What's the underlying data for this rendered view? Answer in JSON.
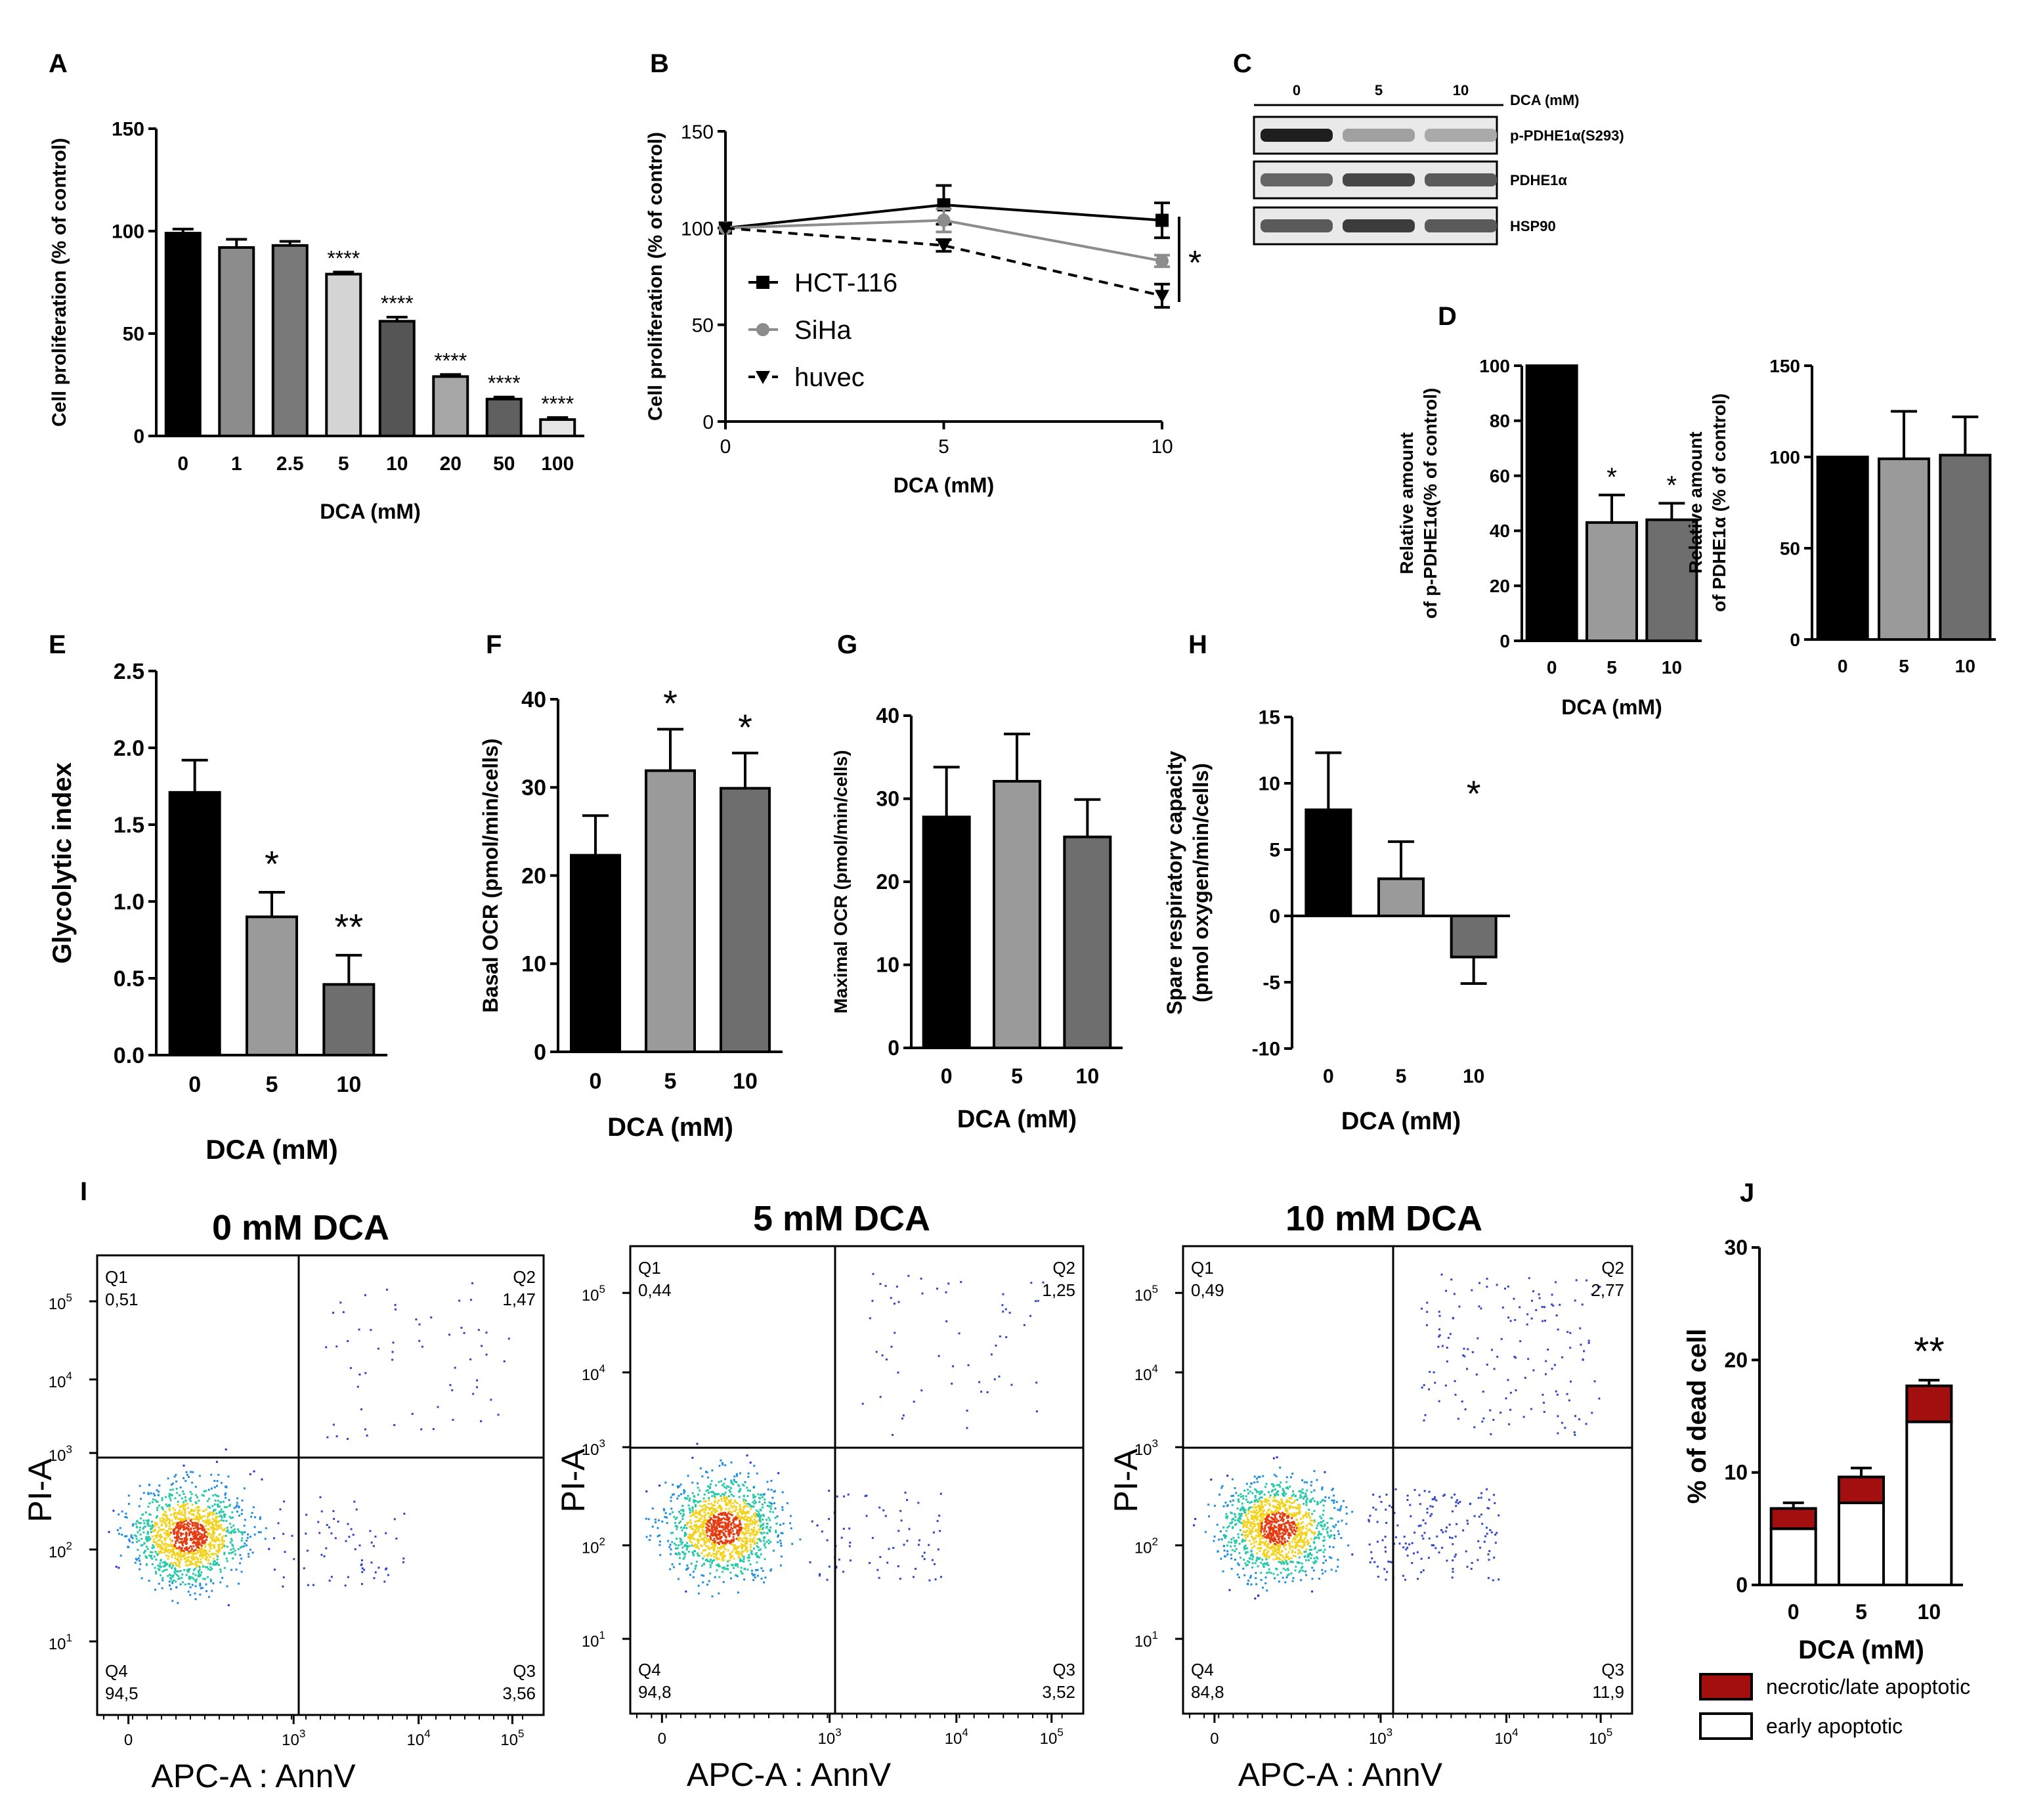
{
  "figure": {
    "x_common_label": "DCA (mM)"
  },
  "chart_data": [
    {
      "id": "A",
      "panel_label": "A",
      "type": "bar",
      "categories": [
        "0",
        "1",
        "2.5",
        "5",
        "10",
        "20",
        "50",
        "100"
      ],
      "values": [
        99,
        92,
        93,
        79,
        56,
        29,
        18,
        8
      ],
      "errors": [
        2,
        4,
        2,
        1,
        2,
        1,
        1,
        1
      ],
      "annotations": [
        "",
        "",
        "",
        "****",
        "****",
        "****",
        "****",
        "****"
      ],
      "colors": [
        "#000000",
        "#8c8c8c",
        "#797979",
        "#d4d4d4",
        "#555555",
        "#a6a6a6",
        "#606060",
        "#e6e6e6"
      ],
      "xlabel": "DCA (mM)",
      "ylabel": "Cell proliferation (% of control)",
      "ylim": [
        0,
        150
      ],
      "yticks": [
        "0",
        "50",
        "100",
        "150"
      ],
      "grid": false
    },
    {
      "id": "B",
      "panel_label": "B",
      "type": "line",
      "x": [
        0,
        5,
        10
      ],
      "xticks": [
        "0",
        "5",
        "10"
      ],
      "series": [
        {
          "name": "HCT-116",
          "values": [
            100,
            112,
            104
          ],
          "errors": [
            0,
            10,
            9
          ],
          "color": "#000000",
          "marker": "square",
          "dash": false
        },
        {
          "name": "SiHa",
          "values": [
            100,
            104,
            83
          ],
          "errors": [
            0,
            6,
            3
          ],
          "color": "#8c8c8c",
          "marker": "circle",
          "dash": false
        },
        {
          "name": "huvec",
          "values": [
            100,
            91,
            65
          ],
          "errors": [
            0,
            3,
            6
          ],
          "color": "#000000",
          "marker": "triangle-down",
          "dash": true
        }
      ],
      "significance": "*",
      "xlabel": "DCA (mM)",
      "ylabel": "Cell proliferation (% of control)",
      "ylim": [
        0,
        150
      ],
      "yticks": [
        "0",
        "50",
        "100",
        "150"
      ],
      "legend": "left"
    },
    {
      "id": "D1",
      "panel_label": "D",
      "type": "bar",
      "categories": [
        "0",
        "5",
        "10"
      ],
      "values": [
        100,
        43,
        44
      ],
      "errors": [
        0,
        10,
        6
      ],
      "annotations": [
        "",
        "*",
        "*"
      ],
      "colors": [
        "#000000",
        "#9a9a9a",
        "#6e6e6e"
      ],
      "xlabel": "DCA (mM)",
      "ylabel_lines": [
        "Relative amount",
        "of p-PDHE1α(% of control)"
      ],
      "ylim": [
        0,
        100
      ],
      "yticks": [
        "0",
        "20",
        "40",
        "60",
        "80",
        "100"
      ]
    },
    {
      "id": "D2",
      "panel_label": "",
      "type": "bar",
      "categories": [
        "0",
        "5",
        "10"
      ],
      "values": [
        100,
        99,
        101
      ],
      "errors": [
        0,
        26,
        21
      ],
      "annotations": [
        "",
        "",
        ""
      ],
      "colors": [
        "#000000",
        "#9a9a9a",
        "#6e6e6e"
      ],
      "xlabel": "",
      "ylabel_lines": [
        "Relative amount",
        "of PDHE1α (% of control)"
      ],
      "ylim": [
        0,
        150
      ],
      "yticks": [
        "0",
        "50",
        "100",
        "150"
      ]
    },
    {
      "id": "E",
      "panel_label": "E",
      "type": "bar",
      "categories": [
        "0",
        "5",
        "10"
      ],
      "values": [
        1.71,
        0.9,
        0.46
      ],
      "errors": [
        0.21,
        0.16,
        0.19
      ],
      "annotations": [
        "",
        "*",
        "**"
      ],
      "colors": [
        "#000000",
        "#9a9a9a",
        "#6e6e6e"
      ],
      "xlabel": "DCA (mM)",
      "ylabel": "Glycolytic index",
      "ylim": [
        0,
        2.5
      ],
      "yticks": [
        "0.0",
        "0.5",
        "1.0",
        "1.5",
        "2.0",
        "2.5"
      ]
    },
    {
      "id": "F",
      "panel_label": "F",
      "type": "bar",
      "categories": [
        "0",
        "5",
        "10"
      ],
      "values": [
        22.3,
        31.9,
        29.9
      ],
      "errors": [
        4.5,
        4.7,
        4
      ],
      "annotations": [
        "",
        "*",
        "*"
      ],
      "colors": [
        "#000000",
        "#9a9a9a",
        "#6e6e6e"
      ],
      "xlabel": "DCA (mM)",
      "ylabel": "Basal OCR (pmol/min/cells)",
      "ylim": [
        0,
        40
      ],
      "yticks": [
        "0",
        "10",
        "20",
        "30",
        "40"
      ]
    },
    {
      "id": "G",
      "panel_label": "G",
      "type": "bar",
      "categories": [
        "0",
        "5",
        "10"
      ],
      "values": [
        27.8,
        32.1,
        25.4
      ],
      "errors": [
        6,
        5.7,
        4.5
      ],
      "annotations": [
        "",
        "",
        ""
      ],
      "colors": [
        "#000000",
        "#9a9a9a",
        "#6e6e6e"
      ],
      "xlabel": "DCA (mM)",
      "ylabel": "Maximal OCR (pmol/min/cells)",
      "ylim": [
        0,
        40
      ],
      "yticks": [
        "0",
        "10",
        "20",
        "30",
        "40"
      ]
    },
    {
      "id": "H",
      "panel_label": "H",
      "type": "bar",
      "categories": [
        "0",
        "5",
        "10"
      ],
      "values": [
        8,
        2.8,
        -3.1
      ],
      "errors": [
        4.3,
        2.8,
        2
      ],
      "annotations": [
        "",
        "",
        "*"
      ],
      "colors": [
        "#000000",
        "#9a9a9a",
        "#6e6e6e"
      ],
      "xlabel": "DCA (mM)",
      "ylabel_lines": [
        "Spare respiratory capacity",
        "(pmol oxygen/min/cells)"
      ],
      "ylim": [
        -10,
        15
      ],
      "yticks": [
        "-10",
        "-5",
        "0",
        "5",
        "10",
        "15"
      ]
    },
    {
      "id": "J",
      "panel_label": "J",
      "type": "stacked-bar",
      "categories": [
        "0",
        "5",
        "10"
      ],
      "series": [
        {
          "name": "early apoptotic",
          "values": [
            5,
            7.3,
            14.5
          ],
          "color": "#ffffff"
        },
        {
          "name": "necrotic/late apoptotic",
          "values": [
            1.8,
            2.3,
            3.2
          ],
          "color": "#a30f0f",
          "errors": [
            0.5,
            0.8,
            0.5
          ]
        }
      ],
      "annotations": [
        "",
        "",
        "**"
      ],
      "xlabel": "DCA (mM)",
      "ylabel": "% of dead cell",
      "ylim": [
        0,
        30
      ],
      "yticks": [
        "0",
        "10",
        "20",
        "30"
      ]
    }
  ],
  "western": {
    "panel_label": "C",
    "lanes": [
      "0",
      "5",
      "10"
    ],
    "header": "DCA (mM)",
    "rows": [
      {
        "label": "p-PDHE1α(S293)",
        "intensity": [
          0.95,
          0.3,
          0.25
        ]
      },
      {
        "label": "PDHE1α",
        "intensity": [
          0.6,
          0.75,
          0.65
        ]
      },
      {
        "label": "HSP90",
        "intensity": [
          0.65,
          0.8,
          0.65
        ]
      }
    ]
  },
  "flow": {
    "panel_label": "I",
    "xlabel": "APC-A : AnnV",
    "ylabel": "PI-A",
    "plots": [
      {
        "title": "0 mM DCA",
        "q1": "0,51",
        "q2": "1,47",
        "q3": "3,56",
        "q4": "94,5",
        "q1_label": "Q1",
        "q2_label": "Q2",
        "q3_label": "Q3",
        "q4_label": "Q4"
      },
      {
        "title": "5 mM DCA",
        "q1": "0,44",
        "q2": "1,25",
        "q3": "3,52",
        "q4": "94,8",
        "q1_label": "Q1",
        "q2_label": "Q2",
        "q3_label": "Q3",
        "q4_label": "Q4"
      },
      {
        "title": "10 mM DCA",
        "q1": "0,49",
        "q2": "2,77",
        "q3": "11,9",
        "q4": "84,8",
        "q1_label": "Q1",
        "q2_label": "Q2",
        "q3_label": "Q3",
        "q4_label": "Q4"
      }
    ],
    "axis_ticks": {
      "zero": "0",
      "b10": "10",
      "e1": "1",
      "e2": "2",
      "e3": "3",
      "e4": "4",
      "e5": "5"
    }
  }
}
